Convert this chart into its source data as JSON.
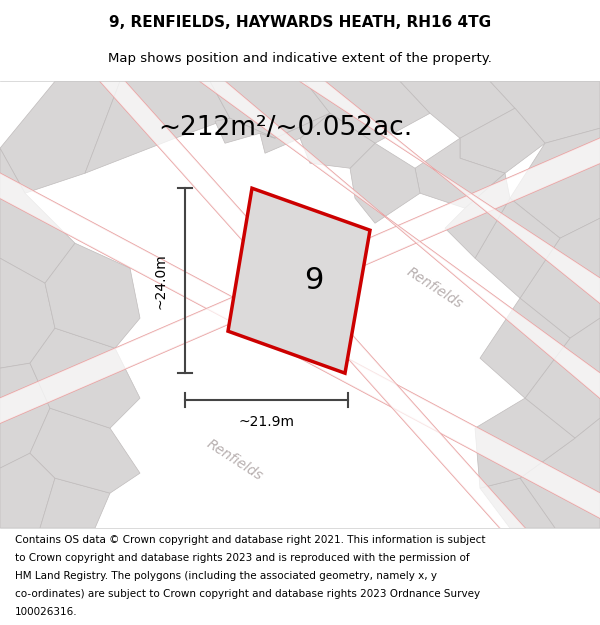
{
  "title": "9, RENFIELDS, HAYWARDS HEATH, RH16 4TG",
  "subtitle": "Map shows position and indicative extent of the property.",
  "area_text": "~212m²/~0.052ac.",
  "dim_width": "~21.9m",
  "dim_height": "~24.0m",
  "property_number": "9",
  "footer_lines": [
    "Contains OS data © Crown copyright and database right 2021. This information is subject",
    "to Crown copyright and database rights 2023 and is reproduced with the permission of",
    "HM Land Registry. The polygons (including the associated geometry, namely x, y",
    "co-ordinates) are subject to Crown copyright and database rights 2023 Ordnance Survey",
    "100026316."
  ],
  "map_bg": "#e8e6e6",
  "property_outline": "#cc0000",
  "dim_color": "#444444",
  "text_color": "#000000",
  "title_fontsize": 11,
  "subtitle_fontsize": 9.5,
  "area_fontsize": 19,
  "footer_fontsize": 7.5,
  "road_label_color": "#b8b0b0",
  "gray_parcel_face": "#d8d6d6",
  "gray_parcel_edge": "#c0bcbc",
  "road_outline_color": "#e8a0a0"
}
